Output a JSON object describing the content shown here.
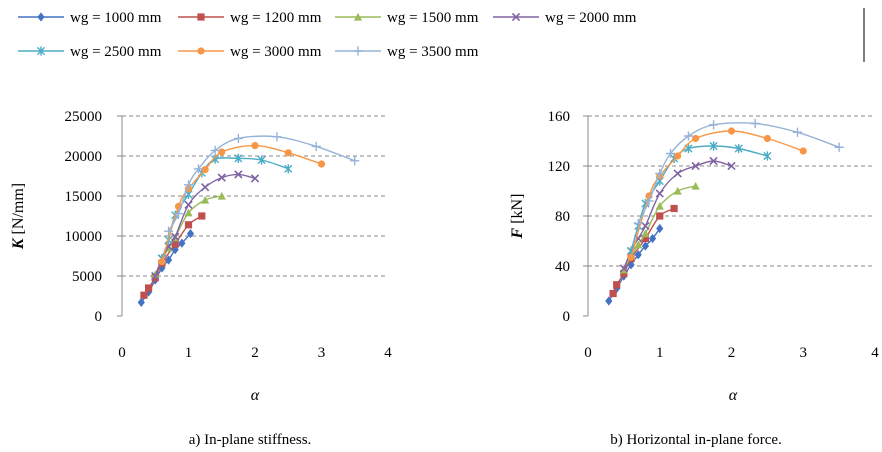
{
  "legend": {
    "items": [
      {
        "label": "wg = 1000 mm",
        "color": "#4472C4",
        "marker": "diamond"
      },
      {
        "label": "wg = 1200 mm",
        "color": "#C0504D",
        "marker": "square"
      },
      {
        "label": "wg = 1500 mm",
        "color": "#9BBB59",
        "marker": "triangle"
      },
      {
        "label": "wg = 2000 mm",
        "color": "#8064A2",
        "marker": "x"
      },
      {
        "label": "wg = 2500 mm",
        "color": "#4BACC6",
        "marker": "star"
      },
      {
        "label": "wg = 3000 mm",
        "color": "#F79646",
        "marker": "circle"
      },
      {
        "label": "wg = 3500 mm",
        "color": "#95B3D7",
        "marker": "plus"
      }
    ]
  },
  "chart_data": [
    {
      "type": "line",
      "caption": "a) In-plane stiffness.",
      "xlabel": "α",
      "ylabel_bold": "K",
      "ylabel_rest": " [N/mm]",
      "xlim": [
        0,
        4
      ],
      "ylim": [
        0,
        25000
      ],
      "xticks": [
        0,
        1,
        2,
        3,
        4
      ],
      "yticks": [
        0,
        5000,
        10000,
        15000,
        20000,
        25000
      ],
      "grid": "horizontal dashed",
      "series": [
        {
          "name": "wg = 1000 mm",
          "x": [
            0.29,
            0.4,
            0.5,
            0.6,
            0.7,
            0.8,
            0.9,
            1.03
          ],
          "y": [
            1700,
            3000,
            4500,
            6000,
            7000,
            8300,
            9100,
            10300
          ]
        },
        {
          "name": "wg = 1200 mm",
          "x": [
            0.33,
            0.4,
            0.5,
            0.6,
            0.8,
            1.0,
            1.2
          ],
          "y": [
            2600,
            3500,
            4800,
            6600,
            9000,
            11400,
            12500
          ]
        },
        {
          "name": "wg = 1500 mm",
          "x": [
            0.5,
            0.6,
            0.7,
            0.8,
            1.0,
            1.25,
            1.5
          ],
          "y": [
            5200,
            7000,
            8500,
            9800,
            12900,
            14500,
            15000
          ]
        },
        {
          "name": "wg = 2000 mm",
          "x": [
            0.5,
            0.6,
            0.7,
            0.8,
            1.0,
            1.25,
            1.5,
            1.75,
            2.0
          ],
          "y": [
            5000,
            7200,
            8700,
            9900,
            13900,
            16100,
            17300,
            17700,
            17200
          ]
        },
        {
          "name": "wg = 2500 mm",
          "x": [
            0.6,
            0.7,
            0.8,
            1.0,
            1.2,
            1.4,
            1.75,
            2.1,
            2.5
          ],
          "y": [
            7200,
            9500,
            12600,
            15200,
            17900,
            19600,
            19700,
            19500,
            18400
          ]
        },
        {
          "name": "wg = 3000 mm",
          "x": [
            0.6,
            0.85,
            1.0,
            1.25,
            1.5,
            2.0,
            2.5,
            3.0
          ],
          "y": [
            6800,
            13700,
            15900,
            18300,
            20500,
            21300,
            20400,
            19000
          ]
        },
        {
          "name": "wg = 3500 mm",
          "x": [
            0.7,
            0.85,
            1.0,
            1.15,
            1.4,
            1.75,
            2.33,
            2.92,
            3.5
          ],
          "y": [
            10600,
            12800,
            16400,
            18400,
            20700,
            22200,
            22400,
            21200,
            19400
          ]
        }
      ]
    },
    {
      "type": "line",
      "caption": "b) Horizontal in-plane force.",
      "xlabel": "α",
      "ylabel_bold": "F",
      "ylabel_rest": " [kN]",
      "xlim": [
        0,
        4
      ],
      "ylim": [
        0,
        160
      ],
      "xticks": [
        0,
        1,
        2,
        3,
        4
      ],
      "yticks": [
        0,
        40,
        80,
        120,
        160
      ],
      "grid": "horizontal dashed",
      "series": [
        {
          "name": "wg = 1000 mm",
          "x": [
            0.29,
            0.4,
            0.5,
            0.6,
            0.7,
            0.8,
            0.9,
            1.0
          ],
          "y": [
            12,
            22,
            32,
            41,
            49,
            56,
            62,
            70
          ]
        },
        {
          "name": "wg = 1200 mm",
          "x": [
            0.35,
            0.4,
            0.5,
            0.6,
            0.8,
            1.0,
            1.2
          ],
          "y": [
            18,
            25,
            34,
            46,
            62,
            80,
            86
          ]
        },
        {
          "name": "wg = 1500 mm",
          "x": [
            0.5,
            0.6,
            0.7,
            0.8,
            1.0,
            1.25,
            1.5
          ],
          "y": [
            37,
            48,
            57,
            66,
            88,
            100,
            104
          ]
        },
        {
          "name": "wg = 2000 mm",
          "x": [
            0.5,
            0.6,
            0.7,
            0.8,
            1.0,
            1.25,
            1.5,
            1.75,
            2.0
          ],
          "y": [
            38,
            52,
            62,
            72,
            98,
            114,
            120,
            124,
            120
          ]
        },
        {
          "name": "wg = 2500 mm",
          "x": [
            0.6,
            0.7,
            0.8,
            1.0,
            1.2,
            1.4,
            1.75,
            2.1,
            2.5
          ],
          "y": [
            52,
            72,
            90,
            108,
            126,
            134,
            136,
            134,
            128
          ]
        },
        {
          "name": "wg = 3000 mm",
          "x": [
            0.6,
            0.85,
            1.0,
            1.25,
            1.5,
            2.0,
            2.5,
            3.0
          ],
          "y": [
            47,
            96,
            112,
            128,
            142,
            148,
            142,
            132
          ]
        },
        {
          "name": "wg = 3500 mm",
          "x": [
            0.7,
            0.85,
            1.0,
            1.15,
            1.4,
            1.75,
            2.33,
            2.92,
            3.5
          ],
          "y": [
            74,
            92,
            114,
            130,
            144,
            153,
            154,
            147,
            135
          ]
        }
      ]
    }
  ]
}
